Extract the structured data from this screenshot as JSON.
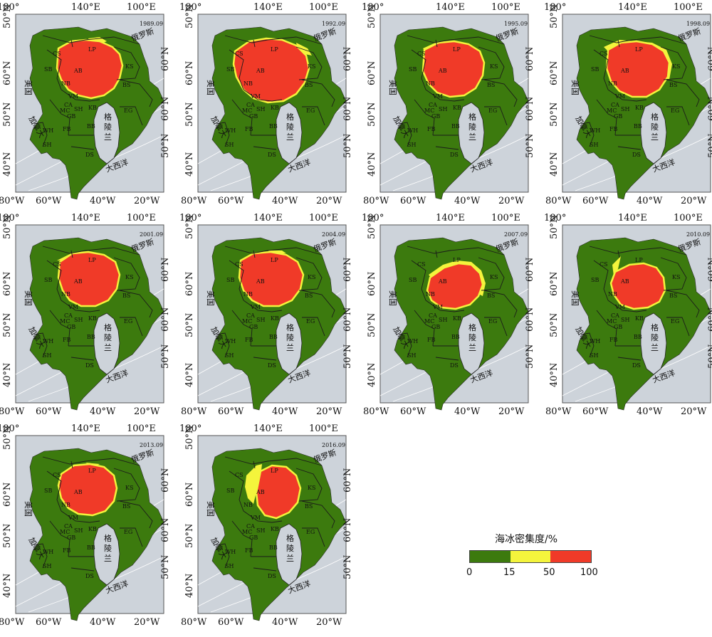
{
  "axis_labels": {
    "top": [
      "180°",
      "140°E",
      "100°E"
    ],
    "bottom": [
      "80°W",
      "60°W",
      "40°W",
      "20°W"
    ],
    "left": [
      "50°N",
      "60°N",
      "50°N",
      "40°N"
    ],
    "right": [
      "60°N",
      "60°N",
      "50°N",
      "50° N",
      "40°N"
    ]
  },
  "place_labels": {
    "russia": "俄罗斯",
    "usa": "美国",
    "canada": "加拿大",
    "greenland_1": "格",
    "greenland_2": "陵",
    "greenland_3": "兰",
    "atlantic": "大西洋"
  },
  "region_codes": [
    "CS",
    "LP",
    "SB",
    "AB",
    "KS",
    "BS",
    "NB",
    "VM",
    "MC",
    "CA",
    "KB",
    "SH",
    "EG",
    "GB",
    "WH",
    "FB",
    "BB",
    "SH",
    "DS"
  ],
  "panels": [
    {
      "date": "1989.09",
      "pattern": "a"
    },
    {
      "date": "1992.09",
      "pattern": "b"
    },
    {
      "date": "1995.09",
      "pattern": "c"
    },
    {
      "date": "1998.09",
      "pattern": "d"
    },
    {
      "date": "2001.09",
      "pattern": "e"
    },
    {
      "date": "2004.09",
      "pattern": "f"
    },
    {
      "date": "2007.09",
      "pattern": "g"
    },
    {
      "date": "2010.09",
      "pattern": "h"
    },
    {
      "date": "2013.09",
      "pattern": "i"
    },
    {
      "date": "2016.09",
      "pattern": "j"
    }
  ],
  "legend": {
    "title": "海冰密集度/%",
    "ticks": [
      "0",
      "15",
      "50",
      "100"
    ],
    "classes": [
      {
        "range": "0-15",
        "color": "#3c7a0e"
      },
      {
        "range": "15-50",
        "color": "#f4f43c"
      },
      {
        "range": "50-100",
        "color": "#f03a28"
      }
    ]
  },
  "colors": {
    "ocean": "#cdd3da",
    "land": "#3c7a0e",
    "low": "#f4f43c",
    "high": "#f03a28",
    "water": "#ffffff"
  }
}
